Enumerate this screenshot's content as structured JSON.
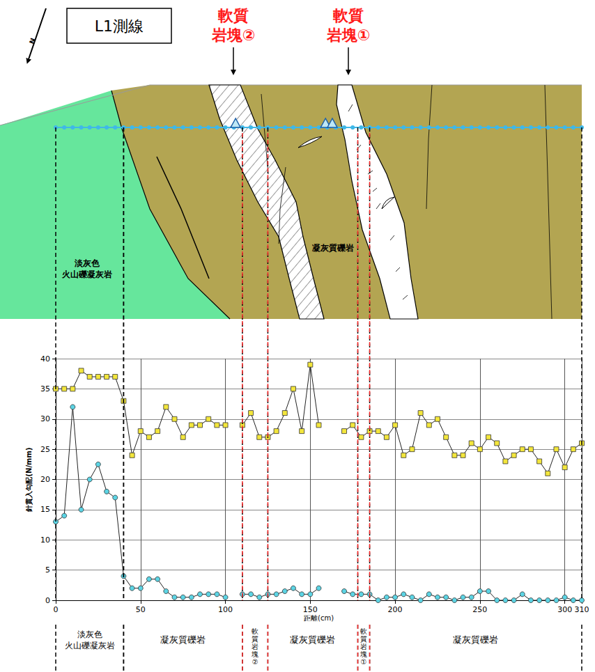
{
  "diagram": {
    "title": "L1測線",
    "north": "N",
    "callouts": [
      "軟質岩塊②",
      "軟質岩塊①"
    ],
    "rock_labels": [
      "淡灰色火山礫凝灰岩",
      "凝灰質礫岩"
    ],
    "survey_marks_x": [
      106,
      159,
      163
    ]
  },
  "chart_data": {
    "type": "line",
    "xlabel": "距離(cm)",
    "ylabel": "針貫入勾配(N/mm)",
    "x": [
      0,
      5,
      10,
      15,
      20,
      25,
      30,
      35,
      40,
      45,
      50,
      55,
      60,
      65,
      70,
      75,
      80,
      85,
      90,
      95,
      100,
      105,
      110,
      115,
      120,
      125,
      130,
      135,
      140,
      145,
      150,
      155,
      160,
      165,
      170,
      175,
      180,
      185,
      190,
      195,
      200,
      205,
      210,
      215,
      220,
      225,
      230,
      235,
      240,
      245,
      250,
      255,
      260,
      265,
      270,
      275,
      280,
      285,
      290,
      295,
      300,
      305,
      310
    ],
    "series": [
      {
        "color": "#f3e63c",
        "marker": "square",
        "values": [
          35,
          35,
          35,
          38,
          37,
          37,
          37,
          37,
          33,
          24,
          28,
          27,
          28,
          32,
          30,
          27,
          29,
          29,
          30,
          29,
          29,
          null,
          29,
          31,
          27,
          27,
          28,
          31,
          35,
          28,
          39,
          29,
          null,
          null,
          28,
          29,
          27,
          28,
          28,
          27,
          29,
          24,
          25,
          31,
          29,
          30,
          27,
          24,
          24,
          26,
          25,
          27,
          26,
          23,
          24,
          25,
          25,
          23,
          21,
          25,
          22,
          25,
          26
        ]
      },
      {
        "color": "#5cd4e4",
        "marker": "circle",
        "values": [
          13,
          14,
          32,
          15,
          20,
          22.5,
          18,
          17,
          4,
          2,
          2,
          3.5,
          3.5,
          1.5,
          0.5,
          0.5,
          0.5,
          1,
          1,
          1,
          0.5,
          null,
          1,
          1,
          0.5,
          1,
          1,
          1.5,
          2,
          1,
          1,
          2,
          null,
          null,
          1.5,
          1,
          1,
          1,
          0,
          0.5,
          0.5,
          1,
          0.5,
          0,
          1,
          0.5,
          0.5,
          0,
          0.5,
          0.5,
          1.5,
          1.5,
          0,
          0,
          0,
          1,
          0,
          0,
          0,
          0,
          0.5,
          0,
          0
        ]
      }
    ],
    "xlim": [
      0,
      310
    ],
    "xticks": [
      0,
      50,
      100,
      150,
      200,
      250,
      300
    ],
    "ylim": [
      0,
      40
    ],
    "yticks": [
      0,
      5,
      10,
      15,
      20,
      25,
      30,
      35,
      40
    ],
    "grid": true,
    "zones": [
      {
        "label": "淡灰色火山礫凝灰岩",
        "from": 0,
        "to": 40,
        "color": "#000000"
      },
      {
        "label": "凝灰質礫岩",
        "from": 40,
        "to": 110,
        "color": "#000000"
      },
      {
        "label": "凝灰質礫岩",
        "from": 125,
        "to": 178,
        "color": "#000000"
      },
      {
        "label": "凝灰質礫岩",
        "from": 185,
        "to": 310,
        "color": "#000000"
      },
      {
        "label": "軟質岩塊②",
        "from": 110,
        "to": 125,
        "color": "#ff3030"
      },
      {
        "label": "軟質岩塊①",
        "from": 178,
        "to": 185,
        "color": "#ff3030"
      }
    ]
  }
}
